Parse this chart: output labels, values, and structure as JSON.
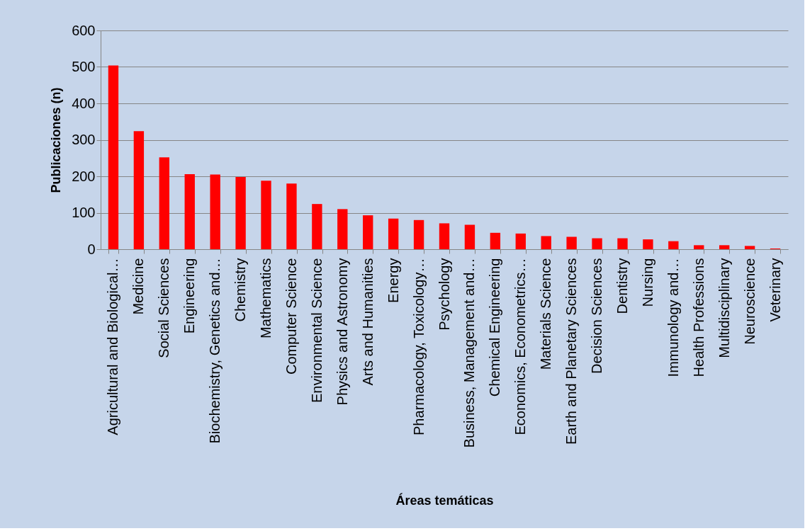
{
  "chart_data": {
    "type": "bar",
    "xlabel": "Áreas temáticas",
    "ylabel": "Publicaciones (n)",
    "categories": [
      "Agricultural and Biological…",
      "Medicine",
      "Social Sciences",
      "Engineering",
      "Biochemistry, Genetics and…",
      "Chemistry",
      "Mathematics",
      "Computer Science",
      "Environmental Science",
      "Physics and Astronomy",
      "Arts and Humanities",
      "Energy",
      "Pharmacology, Toxicology…",
      "Psychology",
      "Business, Management and…",
      "Chemical Engineering",
      "Economics, Econometrics…",
      "Materials Science",
      "Earth and Planetary Sciences",
      "Decision Sciences",
      "Dentistry",
      "Nursing",
      "Immunology and…",
      "Health Professions",
      "Multidisciplinary",
      "Neuroscience",
      "Veterinary"
    ],
    "values": [
      504,
      324,
      252,
      206,
      205,
      198,
      188,
      180,
      124,
      110,
      93,
      84,
      80,
      71,
      67,
      45,
      43,
      36,
      34,
      30,
      30,
      27,
      22,
      11,
      11,
      9,
      2
    ],
    "color": "#ff0000",
    "ylim": [
      0,
      600
    ],
    "yticks": [
      0,
      100,
      200,
      300,
      400,
      500,
      600
    ],
    "grid": "y"
  }
}
